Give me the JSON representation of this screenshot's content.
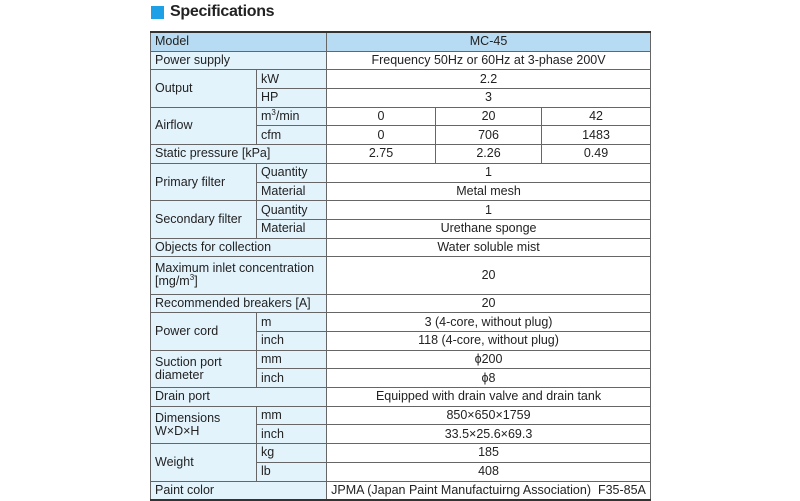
{
  "title": "Specifications",
  "accent": "#1ea0e6",
  "rows": {
    "model": {
      "label": "Model",
      "value": "MC-45"
    },
    "power_supply": {
      "label": "Power supply",
      "value": "Frequency 50Hz or 60Hz at 3-phase 200V"
    },
    "output": {
      "label": "Output",
      "kw": "kW",
      "kw_value": "2.2",
      "hp": "HP",
      "hp_value": "3"
    },
    "airflow": {
      "label": "Airflow",
      "m3_unit": "m",
      "m3_sup": "3",
      "m3_rest": "/min",
      "m3_values": [
        "0",
        "20",
        "42"
      ],
      "cfm": "cfm",
      "cfm_values": [
        "0",
        "706",
        "1483"
      ]
    },
    "static_pressure": {
      "label": "Static pressure [kPa]",
      "values": [
        "2.75",
        "2.26",
        "0.49"
      ]
    },
    "primary_filter": {
      "label": "Primary filter",
      "qty_label": "Quantity",
      "qty": "1",
      "mat_label": "Material",
      "mat": "Metal mesh"
    },
    "secondary_filter": {
      "label": "Secondary filter",
      "qty_label": "Quantity",
      "qty": "1",
      "mat_label": "Material",
      "mat": "Urethane sponge"
    },
    "objects": {
      "label": "Objects for collection",
      "value": "Water soluble mist"
    },
    "max_inlet": {
      "label_a": "Maximum inlet concentration",
      "label_b": "[mg/m",
      "label_sup": "3",
      "label_c": "]",
      "value": "20"
    },
    "breakers": {
      "label": "Recommended breakers [A]",
      "value": "20"
    },
    "power_cord": {
      "label": "Power cord",
      "m": "m",
      "m_value": "3 (4-core, without plug)",
      "inch": "inch",
      "inch_value": "118 (4-core, without plug)"
    },
    "suction": {
      "label_a": "Suction port",
      "label_b": "diameter",
      "mm": "mm",
      "mm_value": "ϕ200",
      "inch": "inch",
      "inch_value": "ϕ8"
    },
    "drain": {
      "label": "Drain port",
      "value": "Equipped with drain valve and drain tank"
    },
    "dimensions": {
      "label_a": "Dimensions",
      "label_b": "W×D×H",
      "mm": "mm",
      "mm_value": "850×650×1759",
      "inch": "inch",
      "inch_value": "33.5×25.6×69.3"
    },
    "weight": {
      "label": "Weight",
      "kg": "kg",
      "kg_value": "185",
      "lb": "lb",
      "lb_value": "408"
    },
    "paint": {
      "label": "Paint color",
      "value": "JPMA (Japan Paint Manufactuirng Association)  F35-85A"
    }
  }
}
